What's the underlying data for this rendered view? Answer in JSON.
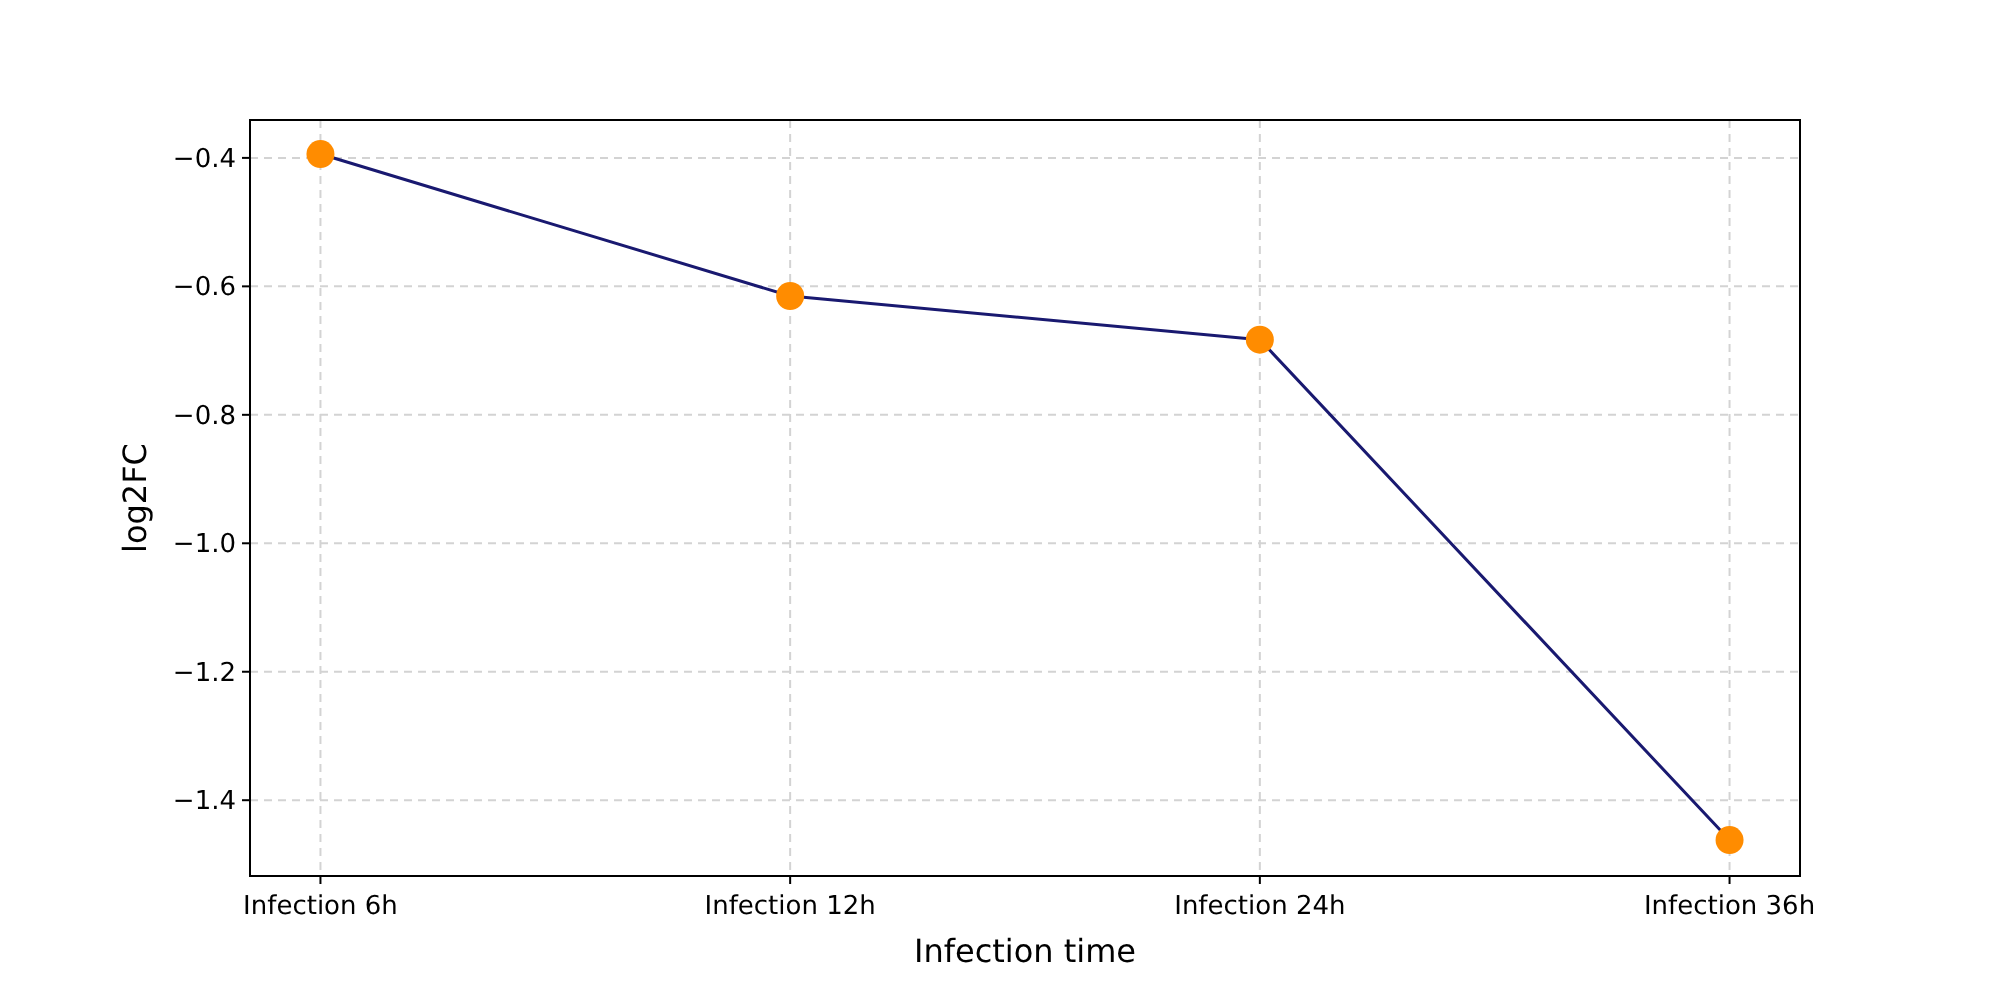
{
  "chart_data": {
    "type": "line",
    "xlabel": "Infection time",
    "ylabel": "log2FC",
    "categories": [
      "Infection 6h",
      "Infection 12h",
      "Infection 24h",
      "Infection 36h"
    ],
    "series": [
      {
        "color": "#191970",
        "colors": [
          "#ff8c00",
          "#ff8c00",
          "#ff8c00",
          "#ff8c00"
        ],
        "values": [
          -0.394,
          -0.615,
          -0.683,
          -1.462
        ]
      }
    ],
    "ylim": [
      -1.518,
      -0.341
    ],
    "yticks": [
      {
        "value": -1.4,
        "label": "−1.4"
      },
      {
        "value": -1.2,
        "label": "−1.2"
      },
      {
        "value": -1.0,
        "label": "−1.0"
      },
      {
        "value": -0.8,
        "label": "−0.8"
      },
      {
        "value": -0.6,
        "label": "−0.6"
      },
      {
        "value": -0.4,
        "label": "−0.4"
      }
    ],
    "grid": true,
    "marker": "circle",
    "line_style": "solid"
  }
}
